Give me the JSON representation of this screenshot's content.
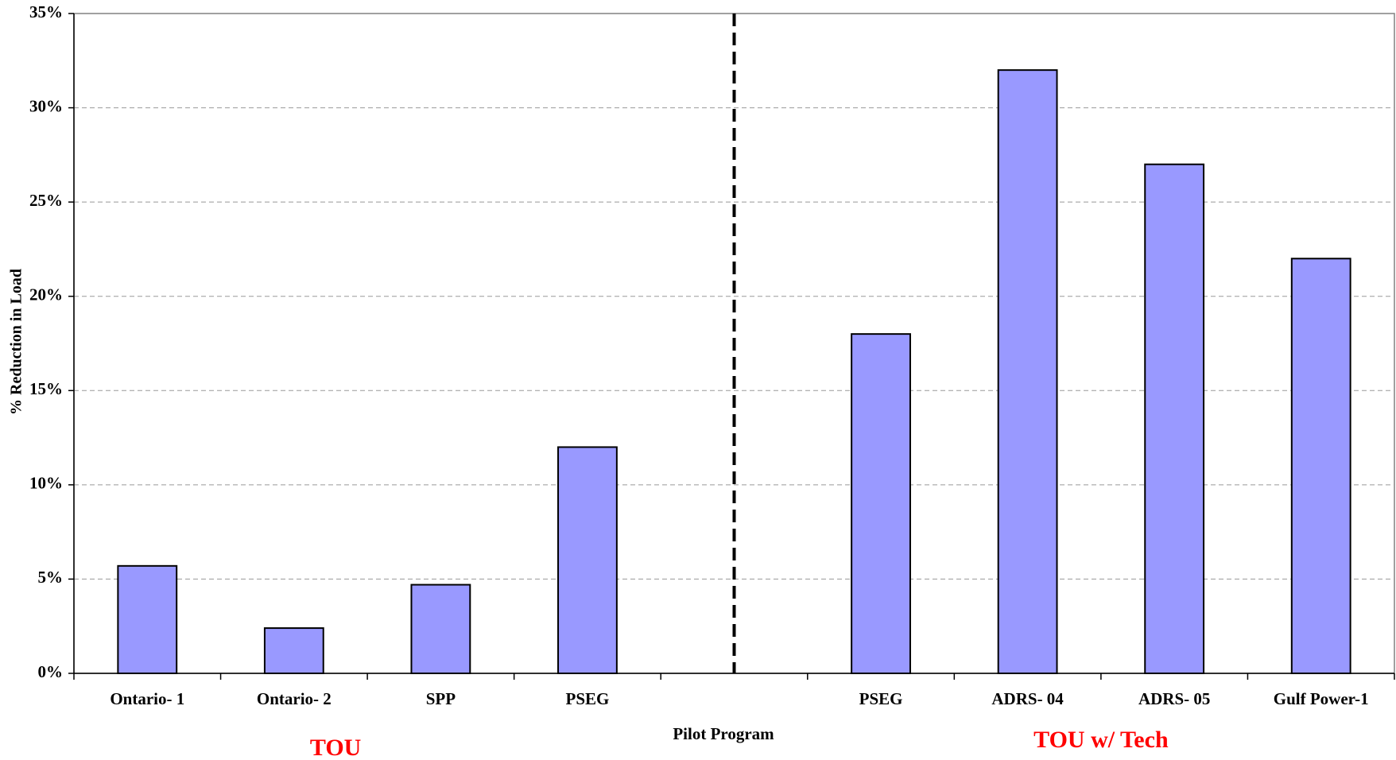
{
  "chart_data": {
    "type": "bar",
    "x_label": "Pilot Program",
    "y_label": "% Reduction in Load",
    "categories": [
      "Ontario- 1",
      "Ontario- 2",
      "SPP",
      "PSEG",
      null,
      "PSEG",
      "ADRS- 04",
      "ADRS- 05",
      "Gulf Power-1"
    ],
    "values": [
      5.7,
      2.4,
      4.7,
      12,
      null,
      18,
      32,
      27,
      22
    ],
    "color": "#9999ff",
    "ylim": [
      0,
      35
    ],
    "yticks": [
      {
        "value": 0,
        "label": "0%"
      },
      {
        "value": 5,
        "label": "5%"
      },
      {
        "value": 10,
        "label": "10%"
      },
      {
        "value": 15,
        "label": "15%"
      },
      {
        "value": 20,
        "label": "20%"
      },
      {
        "value": 25,
        "label": "25%"
      },
      {
        "value": 30,
        "label": "30%"
      },
      {
        "value": 35,
        "label": "35%"
      }
    ],
    "grid": true,
    "annotations": [
      "TOU",
      "TOU w/ Tech"
    ],
    "annotation_color": "#ff0000"
  }
}
